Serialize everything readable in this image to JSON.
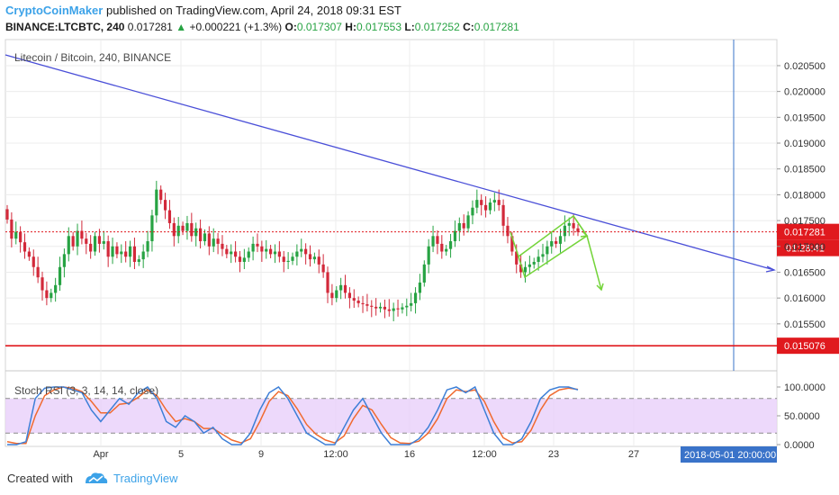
{
  "header": {
    "brand": "CryptoCoinMaker",
    "published": "published on TradingView.com, April 24, 2018 09:31 EST",
    "symbol": "BINANCE:LTCBTC, 240",
    "last": "0.017281",
    "arrow": "▲",
    "change": "+0.000221 (+1.3%)",
    "o_label": "O:",
    "o_value": "0.017307",
    "h_label": "H:",
    "h_value": "0.017553",
    "l_label": "L:",
    "l_value": "0.017252",
    "c_label": "C:",
    "c_value": "0.017281"
  },
  "footer": {
    "created_with": "Created with",
    "brand": "TradingView"
  },
  "colors": {
    "up": "#27a343",
    "down": "#d2293a",
    "trendline": "#4a4fd8",
    "projection": "#74d43a",
    "price_line": "#e0191e",
    "support_line": "#e0191e",
    "stoch_k": "#3d7fd7",
    "stoch_d": "#f06a2f",
    "stoch_band": "#e8cffa",
    "vline": "#3a73c9",
    "brand": "#3ca2e8"
  },
  "chart_data": {
    "type": "candlestick",
    "title": "Litecoin / Bitcoin, 240, BINANCE",
    "x_ticks": [
      "Apr",
      "5",
      "9",
      "12:00",
      "16",
      "12:00",
      "23",
      "27"
    ],
    "y_ticks": [
      "0.020500",
      "0.020000",
      "0.019500",
      "0.019000",
      "0.018500",
      "0.018000",
      "0.017500",
      "0.017000",
      "0.016500",
      "0.016000",
      "0.015500"
    ],
    "ylim": [
      0.0148,
      0.0209
    ],
    "price_label": "0.017281",
    "countdown_label": "01:28:41",
    "support_label": "0.015076",
    "support_value": 0.015076,
    "date_label": "2018-05-01 20:00:00",
    "closes": [
      0.01752,
      0.01715,
      0.01728,
      0.01708,
      0.0169,
      0.0168,
      0.0166,
      0.0164,
      0.01615,
      0.016,
      0.0161,
      0.01625,
      0.0166,
      0.01685,
      0.0172,
      0.017,
      0.0173,
      0.01715,
      0.01705,
      0.0169,
      0.0172,
      0.01705,
      0.0171,
      0.0168,
      0.017,
      0.01685,
      0.0169,
      0.0168,
      0.017,
      0.0167,
      0.01675,
      0.0169,
      0.0171,
      0.0176,
      0.0181,
      0.0179,
      0.0177,
      0.01745,
      0.0172,
      0.0174,
      0.0173,
      0.01745,
      0.0172,
      0.01735,
      0.0171,
      0.01725,
      0.017,
      0.01715,
      0.01705,
      0.01695,
      0.01685,
      0.0169,
      0.0168,
      0.0167,
      0.01678,
      0.0169,
      0.01705,
      0.017,
      0.0169,
      0.01695,
      0.01685,
      0.0169,
      0.0168,
      0.0167,
      0.01672,
      0.0168,
      0.0169,
      0.01695,
      0.01685,
      0.01675,
      0.0168,
      0.01665,
      0.0165,
      0.0161,
      0.016,
      0.01615,
      0.01625,
      0.0161,
      0.016,
      0.01595,
      0.0159,
      0.01588,
      0.01585,
      0.01583,
      0.0158,
      0.01583,
      0.01578,
      0.01575,
      0.0158,
      0.01578,
      0.01582,
      0.01585,
      0.0159,
      0.0161,
      0.0163,
      0.01665,
      0.017,
      0.0172,
      0.01705,
      0.0169,
      0.01695,
      0.0171,
      0.0173,
      0.01745,
      0.01735,
      0.0176,
      0.01775,
      0.0179,
      0.0178,
      0.0177,
      0.01785,
      0.0179,
      0.0178,
      0.0174,
      0.0172,
      0.0169,
      0.01665,
      0.0165,
      0.0166,
      0.01665,
      0.0167,
      0.0168,
      0.01685,
      0.017,
      0.0171,
      0.01705,
      0.0172,
      0.0174,
      0.01745,
      0.01735,
      0.01728
    ],
    "stoch_k": [
      0,
      0,
      5,
      80,
      98,
      100,
      100,
      95,
      90,
      60,
      40,
      60,
      80,
      70,
      90,
      100,
      80,
      40,
      30,
      50,
      40,
      20,
      30,
      10,
      0,
      0,
      20,
      60,
      90,
      100,
      80,
      50,
      20,
      10,
      0,
      0,
      30,
      60,
      80,
      50,
      20,
      0,
      0,
      0,
      10,
      30,
      60,
      95,
      100,
      90,
      100,
      60,
      20,
      0,
      0,
      10,
      40,
      80,
      95,
      100,
      100,
      95
    ],
    "stoch_d": [
      5,
      2,
      2,
      50,
      85,
      95,
      100,
      98,
      92,
      75,
      55,
      55,
      70,
      72,
      82,
      95,
      85,
      60,
      40,
      45,
      40,
      28,
      28,
      18,
      8,
      3,
      10,
      40,
      75,
      92,
      85,
      62,
      35,
      18,
      8,
      3,
      15,
      45,
      68,
      60,
      35,
      12,
      3,
      2,
      6,
      20,
      45,
      80,
      95,
      92,
      95,
      75,
      40,
      12,
      3,
      5,
      25,
      60,
      85,
      95,
      98,
      96
    ],
    "stoch_title": "Stoch RSI (3, 3, 14, 14, close)",
    "stoch_ticks": [
      "100.0000",
      "50.0000",
      "0.0000"
    ],
    "stoch_band": [
      20,
      80
    ]
  }
}
